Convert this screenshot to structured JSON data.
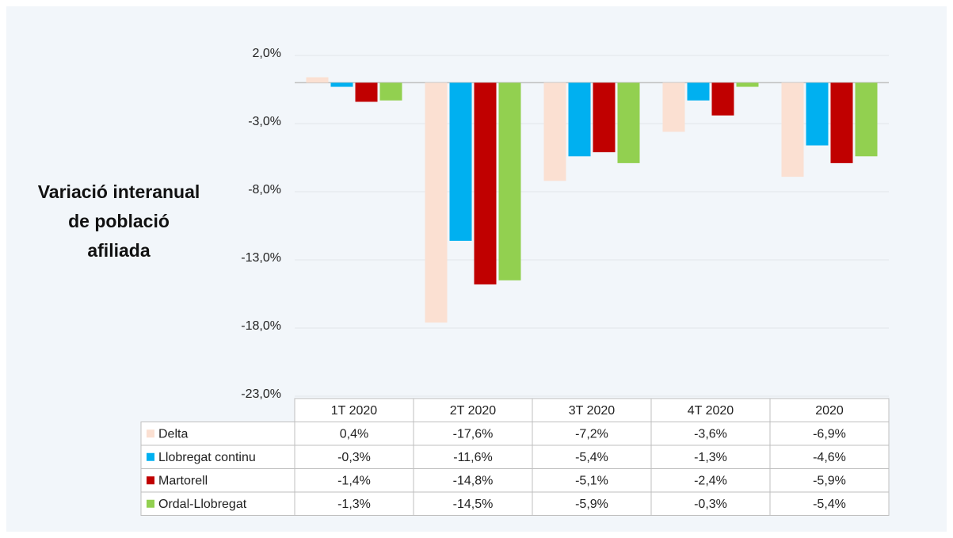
{
  "chart_data": {
    "type": "bar",
    "y_label": [
      "Variació interanual",
      "de població",
      "afiliada"
    ],
    "categories": [
      "1T 2020",
      "2T 2020",
      "3T 2020",
      "4T 2020",
      "2020"
    ],
    "ylim": [
      -23,
      2
    ],
    "yticks": [
      {
        "value": 2,
        "label": "2,0%"
      },
      {
        "value": -3,
        "label": "-3,0%"
      },
      {
        "value": -8,
        "label": "-8,0%"
      },
      {
        "value": -13,
        "label": "-13,0%"
      },
      {
        "value": -18,
        "label": "-18,0%"
      },
      {
        "value": -23,
        "label": "-23,0%"
      }
    ],
    "grid": true,
    "data_table": true,
    "series": [
      {
        "name": "Delta",
        "color": "#fbe0d2",
        "values": [
          0.4,
          -17.6,
          -7.2,
          -3.6,
          -6.9
        ],
        "value_labels": [
          "0,4%",
          "-17,6%",
          "-7,2%",
          "-3,6%",
          "-6,9%"
        ]
      },
      {
        "name": "Llobregat continu",
        "color": "#00b0f0",
        "values": [
          -0.3,
          -11.6,
          -5.4,
          -1.3,
          -4.6
        ],
        "value_labels": [
          "-0,3%",
          "-11,6%",
          "-5,4%",
          "-1,3%",
          "-4,6%"
        ]
      },
      {
        "name": "Martorell",
        "color": "#c00000",
        "values": [
          -1.4,
          -14.8,
          -5.1,
          -2.4,
          -5.9
        ],
        "value_labels": [
          "-1,4%",
          "-14,8%",
          "-5,1%",
          "-2,4%",
          "-5,9%"
        ]
      },
      {
        "name": "Ordal-Llobregat",
        "color": "#92d050",
        "values": [
          -1.3,
          -14.5,
          -5.9,
          -0.3,
          -5.4
        ],
        "value_labels": [
          "-1,3%",
          "-14,5%",
          "-5,9%",
          "-0,3%",
          "-5,4%"
        ]
      }
    ]
  }
}
